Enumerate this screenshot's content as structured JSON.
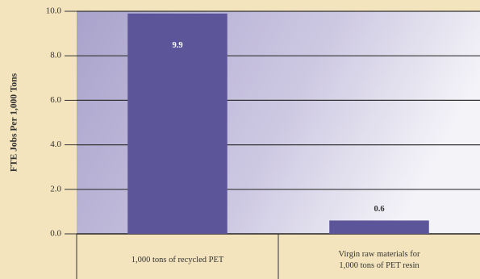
{
  "chart_data": {
    "type": "bar",
    "y_label": "FTE Jobs Per 1,000 Tons",
    "categories": [
      "1,000 tons of recycled PET",
      "Virgin raw materials for 1,000 tons of PET resin"
    ],
    "values": [
      9.9,
      0.6
    ],
    "color": "#5d559a",
    "ylim": [
      0,
      10
    ],
    "yticks": [
      {
        "value": 0,
        "label": "0.0"
      },
      {
        "value": 2,
        "label": "2.0"
      },
      {
        "value": 4,
        "label": "4.0"
      },
      {
        "value": 6,
        "label": "6.0"
      },
      {
        "value": 8,
        "label": "8.0"
      },
      {
        "value": 10,
        "label": "10.0"
      }
    ],
    "grid": true
  }
}
